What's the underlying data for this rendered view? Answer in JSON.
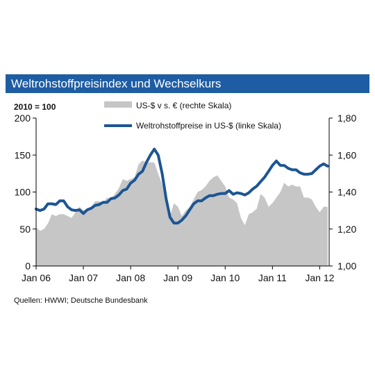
{
  "chart_data": {
    "type": "line",
    "title": "Weltrohstoffpreisindex und Wechselkurs",
    "index_note": "2010 = 100",
    "x_ticks": [
      "Jan 06",
      "Jan 07",
      "Jan 08",
      "Jan 09",
      "Jan 10",
      "Jan 11",
      "Jan 12"
    ],
    "left_axis": {
      "min": 0,
      "max": 200,
      "ticks": [
        "0",
        "50",
        "100",
        "150",
        "200"
      ]
    },
    "right_axis": {
      "min": 1.0,
      "max": 1.8,
      "ticks": [
        "1,00",
        "1,20",
        "1,40",
        "1,60",
        "1,80"
      ]
    },
    "series": [
      {
        "name": "US-$ v s. € (rechte Skala)",
        "axis": "right",
        "render": "area",
        "color": "#c6c6c6",
        "x": [
          2006.0,
          2006.083,
          2006.167,
          2006.25,
          2006.333,
          2006.417,
          2006.5,
          2006.583,
          2006.667,
          2006.75,
          2006.833,
          2006.917,
          2007.0,
          2007.083,
          2007.167,
          2007.25,
          2007.333,
          2007.417,
          2007.5,
          2007.583,
          2007.667,
          2007.75,
          2007.833,
          2007.917,
          2008.0,
          2008.083,
          2008.167,
          2008.25,
          2008.333,
          2008.417,
          2008.5,
          2008.583,
          2008.667,
          2008.75,
          2008.833,
          2008.917,
          2009.0,
          2009.083,
          2009.167,
          2009.25,
          2009.333,
          2009.417,
          2009.5,
          2009.583,
          2009.667,
          2009.75,
          2009.833,
          2009.917,
          2010.0,
          2010.083,
          2010.167,
          2010.25,
          2010.333,
          2010.417,
          2010.5,
          2010.583,
          2010.667,
          2010.75,
          2010.833,
          2010.917,
          2011.0,
          2011.083,
          2011.167,
          2011.25,
          2011.333,
          2011.417,
          2011.5,
          2011.583,
          2011.667,
          2011.75,
          2011.833,
          2011.917,
          2012.0,
          2012.083,
          2012.167
        ],
        "values": [
          1.21,
          1.19,
          1.2,
          1.23,
          1.28,
          1.27,
          1.28,
          1.28,
          1.27,
          1.26,
          1.29,
          1.32,
          1.3,
          1.31,
          1.32,
          1.35,
          1.35,
          1.34,
          1.37,
          1.36,
          1.39,
          1.42,
          1.47,
          1.46,
          1.47,
          1.48,
          1.55,
          1.57,
          1.56,
          1.56,
          1.56,
          1.5,
          1.44,
          1.33,
          1.27,
          1.34,
          1.32,
          1.27,
          1.3,
          1.32,
          1.36,
          1.4,
          1.41,
          1.43,
          1.46,
          1.48,
          1.49,
          1.46,
          1.43,
          1.37,
          1.36,
          1.34,
          1.26,
          1.22,
          1.28,
          1.29,
          1.31,
          1.39,
          1.37,
          1.32,
          1.34,
          1.37,
          1.4,
          1.45,
          1.43,
          1.44,
          1.43,
          1.43,
          1.37,
          1.37,
          1.36,
          1.32,
          1.29,
          1.32,
          1.32
        ]
      },
      {
        "name": "Weltrohstoffpreise in US-$ (linke Skala)",
        "axis": "left",
        "render": "line",
        "color": "#1c5594",
        "x": [
          2006.0,
          2006.083,
          2006.167,
          2006.25,
          2006.333,
          2006.417,
          2006.5,
          2006.583,
          2006.667,
          2006.75,
          2006.833,
          2006.917,
          2007.0,
          2007.083,
          2007.167,
          2007.25,
          2007.333,
          2007.417,
          2007.5,
          2007.583,
          2007.667,
          2007.75,
          2007.833,
          2007.917,
          2008.0,
          2008.083,
          2008.167,
          2008.25,
          2008.333,
          2008.417,
          2008.5,
          2008.583,
          2008.667,
          2008.75,
          2008.833,
          2008.917,
          2009.0,
          2009.083,
          2009.167,
          2009.25,
          2009.333,
          2009.417,
          2009.5,
          2009.583,
          2009.667,
          2009.75,
          2009.833,
          2009.917,
          2010.0,
          2010.083,
          2010.167,
          2010.25,
          2010.333,
          2010.417,
          2010.5,
          2010.583,
          2010.667,
          2010.75,
          2010.833,
          2010.917,
          2011.0,
          2011.083,
          2011.167,
          2011.25,
          2011.333,
          2011.417,
          2011.5,
          2011.583,
          2011.667,
          2011.75,
          2011.833,
          2011.917,
          2012.0,
          2012.083,
          2012.167
        ],
        "values": [
          77,
          75,
          77,
          84,
          84,
          83,
          88,
          88,
          80,
          76,
          75,
          76,
          71,
          76,
          78,
          82,
          83,
          86,
          86,
          91,
          92,
          96,
          102,
          104,
          112,
          116,
          124,
          128,
          140,
          150,
          158,
          150,
          125,
          91,
          66,
          58,
          58,
          62,
          68,
          76,
          84,
          88,
          88,
          92,
          95,
          95,
          97,
          98,
          98,
          102,
          97,
          99,
          98,
          96,
          99,
          104,
          108,
          114,
          120,
          128,
          136,
          142,
          136,
          136,
          132,
          130,
          130,
          126,
          124,
          124,
          125,
          130,
          135,
          138,
          135
        ]
      }
    ]
  },
  "sources": "Quellen: HWWI; Deutsche Bundesbank"
}
